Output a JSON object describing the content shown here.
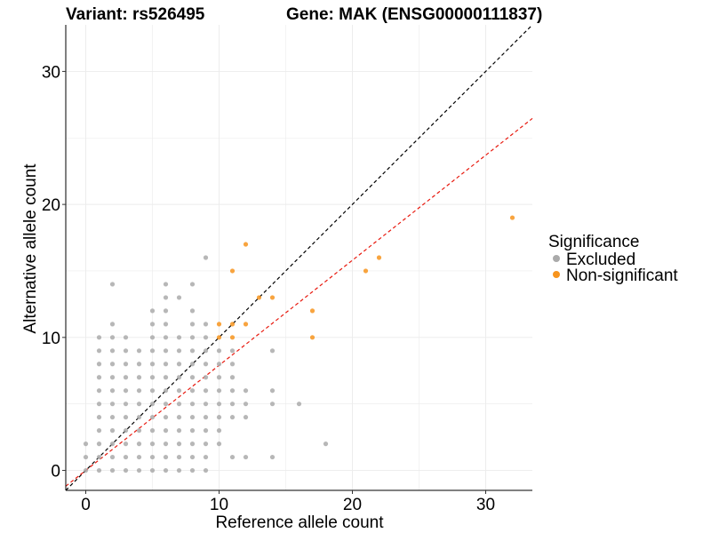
{
  "chart_data": {
    "type": "scatter",
    "title_left": "Variant: rs526495",
    "title_right": "Gene: MAK (ENSG00000111837)",
    "xlabel": "Reference allele count",
    "ylabel": "Alternative allele count",
    "xlim": [
      -1.5,
      33.5
    ],
    "ylim": [
      -1.5,
      33.5
    ],
    "x_ticks": [
      0,
      10,
      20,
      30
    ],
    "y_ticks": [
      0,
      10,
      20,
      30
    ],
    "grid": true,
    "legend": {
      "title": "Significance",
      "position": "right",
      "entries": [
        {
          "label": "Excluded",
          "color": "#AAAAAA"
        },
        {
          "label": "Non-significant",
          "color": "#F7941D"
        }
      ]
    },
    "reference_lines": [
      {
        "name": "identity",
        "slope": 1,
        "intercept": 0,
        "color": "#000000",
        "dash": true
      },
      {
        "name": "fit",
        "slope": 0.79,
        "intercept": 0,
        "color": "#E8190E",
        "dash": true
      }
    ],
    "series": [
      {
        "name": "Excluded",
        "color": "#AAAAAA",
        "points": [
          [
            0,
            0
          ],
          [
            0,
            1
          ],
          [
            0,
            2
          ],
          [
            1,
            0
          ],
          [
            1,
            1
          ],
          [
            1,
            2
          ],
          [
            1,
            3
          ],
          [
            1,
            4
          ],
          [
            1,
            5
          ],
          [
            1,
            6
          ],
          [
            1,
            7
          ],
          [
            1,
            8
          ],
          [
            1,
            9
          ],
          [
            1,
            10
          ],
          [
            2,
            0
          ],
          [
            2,
            1
          ],
          [
            2,
            2
          ],
          [
            2,
            3
          ],
          [
            2,
            4
          ],
          [
            2,
            5
          ],
          [
            2,
            6
          ],
          [
            2,
            7
          ],
          [
            2,
            8
          ],
          [
            2,
            9
          ],
          [
            2,
            10
          ],
          [
            2,
            11
          ],
          [
            2,
            14
          ],
          [
            3,
            0
          ],
          [
            3,
            1
          ],
          [
            3,
            2
          ],
          [
            3,
            3
          ],
          [
            3,
            4
          ],
          [
            3,
            5
          ],
          [
            3,
            6
          ],
          [
            3,
            7
          ],
          [
            3,
            8
          ],
          [
            3,
            9
          ],
          [
            3,
            10
          ],
          [
            4,
            0
          ],
          [
            4,
            1
          ],
          [
            4,
            2
          ],
          [
            4,
            3
          ],
          [
            4,
            4
          ],
          [
            4,
            5
          ],
          [
            4,
            6
          ],
          [
            4,
            7
          ],
          [
            4,
            8
          ],
          [
            4,
            9
          ],
          [
            5,
            0
          ],
          [
            5,
            1
          ],
          [
            5,
            2
          ],
          [
            5,
            3
          ],
          [
            5,
            4
          ],
          [
            5,
            5
          ],
          [
            5,
            6
          ],
          [
            5,
            7
          ],
          [
            5,
            8
          ],
          [
            5,
            9
          ],
          [
            5,
            10
          ],
          [
            5,
            11
          ],
          [
            5,
            12
          ],
          [
            6,
            0
          ],
          [
            6,
            1
          ],
          [
            6,
            2
          ],
          [
            6,
            3
          ],
          [
            6,
            4
          ],
          [
            6,
            5
          ],
          [
            6,
            6
          ],
          [
            6,
            7
          ],
          [
            6,
            8
          ],
          [
            6,
            9
          ],
          [
            6,
            10
          ],
          [
            6,
            11
          ],
          [
            6,
            12
          ],
          [
            6,
            13
          ],
          [
            6,
            14
          ],
          [
            7,
            0
          ],
          [
            7,
            1
          ],
          [
            7,
            2
          ],
          [
            7,
            3
          ],
          [
            7,
            4
          ],
          [
            7,
            5
          ],
          [
            7,
            6
          ],
          [
            7,
            7
          ],
          [
            7,
            8
          ],
          [
            7,
            9
          ],
          [
            7,
            10
          ],
          [
            7,
            13
          ],
          [
            8,
            0
          ],
          [
            8,
            1
          ],
          [
            8,
            2
          ],
          [
            8,
            3
          ],
          [
            8,
            4
          ],
          [
            8,
            5
          ],
          [
            8,
            6
          ],
          [
            8,
            7
          ],
          [
            8,
            8
          ],
          [
            8,
            9
          ],
          [
            8,
            10
          ],
          [
            8,
            11
          ],
          [
            8,
            12
          ],
          [
            8,
            14
          ],
          [
            9,
            0
          ],
          [
            9,
            1
          ],
          [
            9,
            2
          ],
          [
            9,
            3
          ],
          [
            9,
            4
          ],
          [
            9,
            5
          ],
          [
            9,
            6
          ],
          [
            9,
            7
          ],
          [
            9,
            8
          ],
          [
            9,
            9
          ],
          [
            9,
            10
          ],
          [
            9,
            11
          ],
          [
            9,
            16
          ],
          [
            10,
            2
          ],
          [
            10,
            3
          ],
          [
            10,
            4
          ],
          [
            10,
            5
          ],
          [
            10,
            6
          ],
          [
            10,
            7
          ],
          [
            10,
            8
          ],
          [
            10,
            9
          ],
          [
            11,
            1
          ],
          [
            11,
            4
          ],
          [
            11,
            5
          ],
          [
            11,
            6
          ],
          [
            11,
            7
          ],
          [
            11,
            8
          ],
          [
            11,
            9
          ],
          [
            12,
            1
          ],
          [
            12,
            4
          ],
          [
            12,
            5
          ],
          [
            12,
            6
          ],
          [
            14,
            1
          ],
          [
            14,
            5
          ],
          [
            14,
            6
          ],
          [
            14,
            9
          ],
          [
            16,
            5
          ],
          [
            18,
            2
          ]
        ]
      },
      {
        "name": "Non-significant",
        "color": "#F7941D",
        "points": [
          [
            10,
            10
          ],
          [
            10,
            11
          ],
          [
            11,
            10
          ],
          [
            11,
            11
          ],
          [
            11,
            15
          ],
          [
            12,
            11
          ],
          [
            12,
            17
          ],
          [
            13,
            13
          ],
          [
            14,
            13
          ],
          [
            17,
            10
          ],
          [
            17,
            12
          ],
          [
            21,
            15
          ],
          [
            22,
            16
          ],
          [
            32,
            19
          ]
        ]
      }
    ]
  }
}
